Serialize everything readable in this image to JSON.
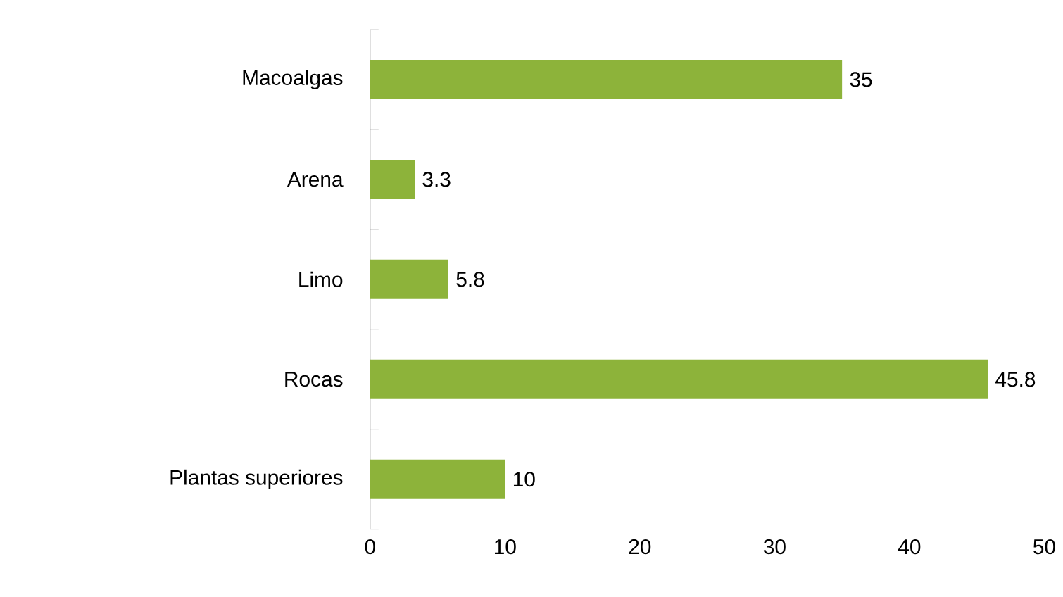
{
  "chart_data": {
    "type": "bar",
    "orientation": "horizontal",
    "categories": [
      "Macoalgas",
      "Arena",
      "Limo",
      "Rocas",
      "Plantas superiores"
    ],
    "values": [
      35,
      3.3,
      5.8,
      45.8,
      10
    ],
    "color": "#8db33a",
    "xlim": [
      0,
      50
    ],
    "xticks": [
      0,
      10,
      20,
      30,
      40,
      50
    ],
    "data_labels": true
  }
}
